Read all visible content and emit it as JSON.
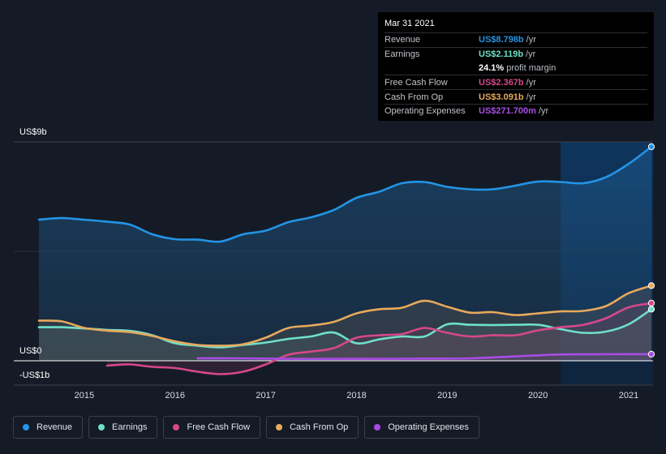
{
  "tooltip": {
    "date": "Mar 31 2021",
    "rows": [
      {
        "label": "Revenue",
        "value": "US$8.798b",
        "unit": "/yr",
        "color": "#2394e5"
      },
      {
        "label": "Earnings",
        "value": "US$2.119b",
        "unit": "/yr",
        "color": "#6fe0c9"
      },
      {
        "label": "",
        "value": "24.1%",
        "unit": "profit margin",
        "color": "#ffffff"
      },
      {
        "label": "Free Cash Flow",
        "value": "US$2.367b",
        "unit": "/yr",
        "color": "#d6488a"
      },
      {
        "label": "Cash From Op",
        "value": "US$3.091b",
        "unit": "/yr",
        "color": "#e8a95c"
      },
      {
        "label": "Operating Expenses",
        "value": "US$271.700m",
        "unit": "/yr",
        "color": "#a84ce5"
      }
    ]
  },
  "legend": [
    {
      "label": "Revenue",
      "color": "#2394e5"
    },
    {
      "label": "Earnings",
      "color": "#6fe0c9"
    },
    {
      "label": "Free Cash Flow",
      "color": "#d6488a"
    },
    {
      "label": "Cash From Op",
      "color": "#e8a95c"
    },
    {
      "label": "Operating Expenses",
      "color": "#a84ce5"
    }
  ],
  "chart_data": {
    "type": "area",
    "title": "",
    "xlabel": "",
    "ylabel": "",
    "y_top_label": "US$9b",
    "y_zero_label": "US$0",
    "y_bottom_label": "-US$1b",
    "ylim": [
      -1,
      9
    ],
    "xlim": [
      2014.5,
      2021.25
    ],
    "x_ticks": [
      2015,
      2016,
      2017,
      2018,
      2019,
      2020,
      2021
    ],
    "x_tick_labels": [
      "2015",
      "2016",
      "2017",
      "2018",
      "2019",
      "2020",
      "2021"
    ],
    "forecast_start": 2020.25,
    "series": [
      {
        "name": "Revenue",
        "color": "#2394e5",
        "points": [
          [
            2014.5,
            5.8
          ],
          [
            2014.75,
            5.87
          ],
          [
            2015.0,
            5.8
          ],
          [
            2015.25,
            5.72
          ],
          [
            2015.5,
            5.6
          ],
          [
            2015.75,
            5.2
          ],
          [
            2016.0,
            5.0
          ],
          [
            2016.25,
            4.98
          ],
          [
            2016.5,
            4.9
          ],
          [
            2016.75,
            5.2
          ],
          [
            2017.0,
            5.35
          ],
          [
            2017.25,
            5.7
          ],
          [
            2017.5,
            5.9
          ],
          [
            2017.75,
            6.2
          ],
          [
            2018.0,
            6.7
          ],
          [
            2018.25,
            6.95
          ],
          [
            2018.5,
            7.3
          ],
          [
            2018.75,
            7.35
          ],
          [
            2019.0,
            7.15
          ],
          [
            2019.25,
            7.05
          ],
          [
            2019.5,
            7.05
          ],
          [
            2019.75,
            7.2
          ],
          [
            2020.0,
            7.37
          ],
          [
            2020.25,
            7.35
          ],
          [
            2020.5,
            7.3
          ],
          [
            2020.75,
            7.55
          ],
          [
            2021.0,
            8.1
          ],
          [
            2021.25,
            8.8
          ]
        ]
      },
      {
        "name": "Earnings",
        "color": "#6fe0c9",
        "points": [
          [
            2014.5,
            1.38
          ],
          [
            2014.75,
            1.38
          ],
          [
            2015.0,
            1.33
          ],
          [
            2015.25,
            1.27
          ],
          [
            2015.5,
            1.23
          ],
          [
            2015.75,
            1.05
          ],
          [
            2016.0,
            0.72
          ],
          [
            2016.25,
            0.62
          ],
          [
            2016.5,
            0.55
          ],
          [
            2016.75,
            0.65
          ],
          [
            2017.0,
            0.75
          ],
          [
            2017.25,
            0.9
          ],
          [
            2017.5,
            1.0
          ],
          [
            2017.75,
            1.16
          ],
          [
            2018.0,
            0.72
          ],
          [
            2018.25,
            0.88
          ],
          [
            2018.5,
            1.0
          ],
          [
            2018.75,
            1.0
          ],
          [
            2019.0,
            1.5
          ],
          [
            2019.25,
            1.48
          ],
          [
            2019.5,
            1.47
          ],
          [
            2019.75,
            1.48
          ],
          [
            2020.0,
            1.48
          ],
          [
            2020.25,
            1.3
          ],
          [
            2020.5,
            1.15
          ],
          [
            2020.75,
            1.2
          ],
          [
            2021.0,
            1.5
          ],
          [
            2021.25,
            2.12
          ]
        ]
      },
      {
        "name": "Free Cash Flow",
        "color": "#d6488a",
        "points": [
          [
            2015.25,
            -0.2
          ],
          [
            2015.5,
            -0.15
          ],
          [
            2015.75,
            -0.25
          ],
          [
            2016.0,
            -0.3
          ],
          [
            2016.25,
            -0.45
          ],
          [
            2016.5,
            -0.55
          ],
          [
            2016.75,
            -0.45
          ],
          [
            2017.0,
            -0.15
          ],
          [
            2017.25,
            0.25
          ],
          [
            2017.5,
            0.38
          ],
          [
            2017.75,
            0.52
          ],
          [
            2018.0,
            0.95
          ],
          [
            2018.25,
            1.05
          ],
          [
            2018.5,
            1.1
          ],
          [
            2018.75,
            1.35
          ],
          [
            2019.0,
            1.15
          ],
          [
            2019.25,
            1.0
          ],
          [
            2019.5,
            1.05
          ],
          [
            2019.75,
            1.05
          ],
          [
            2020.0,
            1.25
          ],
          [
            2020.25,
            1.38
          ],
          [
            2020.5,
            1.48
          ],
          [
            2020.75,
            1.75
          ],
          [
            2021.0,
            2.2
          ],
          [
            2021.25,
            2.37
          ]
        ]
      },
      {
        "name": "Cash From Op",
        "color": "#e8a95c",
        "points": [
          [
            2014.5,
            1.65
          ],
          [
            2014.75,
            1.62
          ],
          [
            2015.0,
            1.35
          ],
          [
            2015.25,
            1.24
          ],
          [
            2015.5,
            1.18
          ],
          [
            2015.75,
            1.02
          ],
          [
            2016.0,
            0.8
          ],
          [
            2016.25,
            0.65
          ],
          [
            2016.5,
            0.62
          ],
          [
            2016.75,
            0.68
          ],
          [
            2017.0,
            0.95
          ],
          [
            2017.25,
            1.35
          ],
          [
            2017.5,
            1.45
          ],
          [
            2017.75,
            1.6
          ],
          [
            2018.0,
            1.95
          ],
          [
            2018.25,
            2.12
          ],
          [
            2018.5,
            2.18
          ],
          [
            2018.75,
            2.47
          ],
          [
            2019.0,
            2.22
          ],
          [
            2019.25,
            1.98
          ],
          [
            2019.5,
            2.0
          ],
          [
            2019.75,
            1.88
          ],
          [
            2020.0,
            1.95
          ],
          [
            2020.25,
            2.03
          ],
          [
            2020.5,
            2.05
          ],
          [
            2020.75,
            2.25
          ],
          [
            2021.0,
            2.78
          ],
          [
            2021.25,
            3.09
          ]
        ]
      },
      {
        "name": "Operating Expenses",
        "color": "#a84ce5",
        "points": [
          [
            2016.25,
            0.1
          ],
          [
            2016.75,
            0.1
          ],
          [
            2017.25,
            0.08
          ],
          [
            2017.75,
            0.08
          ],
          [
            2018.25,
            0.08
          ],
          [
            2018.75,
            0.09
          ],
          [
            2019.25,
            0.1
          ],
          [
            2019.75,
            0.18
          ],
          [
            2020.25,
            0.26
          ],
          [
            2020.75,
            0.27
          ],
          [
            2021.25,
            0.27
          ]
        ]
      }
    ]
  }
}
